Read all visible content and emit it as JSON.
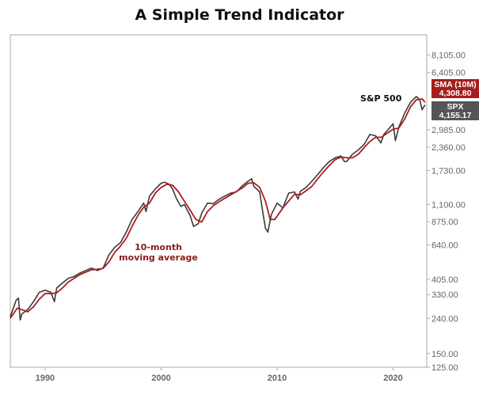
{
  "title": "A Simple Trend Indicator",
  "colors": {
    "price_line": "#3a3a3a",
    "sma_line": "#b01c1c",
    "sma_tag": "#a51d1d",
    "spx_tag": "#555555",
    "frame": "#aaaaaa",
    "annotation": "#8b1a1a"
  },
  "chart_data": {
    "type": "line",
    "title": "A Simple Trend Indicator",
    "xlabel": "",
    "ylabel": "",
    "y_scale": "log",
    "xlim": [
      1987.0,
      2022.9
    ],
    "ylim": [
      125,
      10600
    ],
    "grid": false,
    "x_ticks": [
      1990,
      2000,
      2010,
      2020
    ],
    "x_tick_labels": [
      "1990",
      "2000",
      "2010",
      "2020"
    ],
    "y_ticks": [
      125,
      150,
      240,
      330,
      405,
      640,
      875,
      1100,
      1730,
      2360,
      2985,
      6405,
      8105
    ],
    "y_tick_labels": [
      "125.00",
      "150.00",
      "240.00",
      "330.00",
      "405.00",
      "640.00",
      "875.00",
      "1,100.00",
      "1,730.00",
      "2,360.00",
      "2,985.00",
      "6,405.00",
      "8,105.00"
    ],
    "series": [
      {
        "name": "S&P 500",
        "x": [
          1987.0,
          1987.5,
          1987.7,
          1987.85,
          1988.0,
          1988.5,
          1989.0,
          1989.5,
          1990.0,
          1990.5,
          1990.8,
          1991.0,
          1991.5,
          1992.0,
          1992.5,
          1993.0,
          1993.5,
          1994.0,
          1994.5,
          1995.0,
          1995.5,
          1996.0,
          1996.5,
          1997.0,
          1997.5,
          1998.0,
          1998.5,
          1998.7,
          1999.0,
          1999.5,
          2000.0,
          2000.3,
          2000.7,
          2001.0,
          2001.3,
          2001.7,
          2002.0,
          2002.5,
          2002.8,
          2003.2,
          2003.5,
          2004.0,
          2004.5,
          2005.0,
          2005.5,
          2006.0,
          2006.5,
          2007.0,
          2007.5,
          2007.8,
          2008.0,
          2008.5,
          2008.8,
          2009.0,
          2009.2,
          2009.5,
          2010.0,
          2010.5,
          2011.0,
          2011.5,
          2011.8,
          2012.0,
          2012.5,
          2013.0,
          2013.5,
          2014.0,
          2014.5,
          2015.0,
          2015.5,
          2015.8,
          2016.0,
          2016.5,
          2017.0,
          2017.5,
          2018.0,
          2018.5,
          2018.95,
          2019.2,
          2019.5,
          2020.0,
          2020.2,
          2020.5,
          2021.0,
          2021.5,
          2022.0,
          2022.3,
          2022.5,
          2022.75
        ],
        "values": [
          245,
          305,
          315,
          235,
          255,
          270,
          300,
          340,
          350,
          340,
          300,
          360,
          385,
          410,
          420,
          440,
          455,
          470,
          455,
          470,
          560,
          620,
          660,
          760,
          900,
          1000,
          1120,
          1000,
          1230,
          1350,
          1460,
          1480,
          1440,
          1350,
          1200,
          1070,
          1100,
          950,
          820,
          850,
          980,
          1120,
          1110,
          1180,
          1230,
          1280,
          1300,
          1410,
          1500,
          1550,
          1400,
          1300,
          960,
          800,
          760,
          960,
          1120,
          1050,
          1280,
          1300,
          1180,
          1310,
          1380,
          1500,
          1640,
          1800,
          1950,
          2050,
          2100,
          1950,
          1950,
          2150,
          2280,
          2450,
          2800,
          2750,
          2500,
          2800,
          2950,
          3230,
          2580,
          3100,
          3730,
          4300,
          4650,
          4450,
          3900,
          4155
        ]
      },
      {
        "name": "SMA (10M)",
        "x": [
          1987.0,
          1987.6,
          1988.0,
          1988.5,
          1989.0,
          1989.5,
          1990.0,
          1990.7,
          1991.0,
          1991.5,
          1992.0,
          1992.5,
          1993.0,
          1993.5,
          1994.0,
          1994.5,
          1995.0,
          1995.5,
          1996.0,
          1996.5,
          1997.0,
          1997.5,
          1998.0,
          1998.5,
          1999.0,
          1999.5,
          2000.0,
          2000.5,
          2001.0,
          2001.5,
          2002.0,
          2002.5,
          2003.0,
          2003.5,
          2004.0,
          2004.5,
          2005.0,
          2006.0,
          2007.0,
          2007.5,
          2008.0,
          2008.5,
          2009.0,
          2009.4,
          2009.8,
          2010.5,
          2011.0,
          2011.5,
          2012.0,
          2012.5,
          2013.0,
          2013.5,
          2014.0,
          2014.5,
          2015.0,
          2015.5,
          2016.0,
          2016.5,
          2017.0,
          2017.5,
          2018.0,
          2018.5,
          2019.0,
          2019.5,
          2020.0,
          2020.5,
          2021.0,
          2021.5,
          2022.0,
          2022.5,
          2022.75
        ],
        "values": [
          240,
          275,
          270,
          262,
          280,
          310,
          335,
          335,
          338,
          360,
          390,
          410,
          430,
          445,
          460,
          462,
          468,
          510,
          580,
          630,
          700,
          820,
          950,
          1060,
          1120,
          1280,
          1380,
          1440,
          1420,
          1300,
          1150,
          1020,
          900,
          870,
          1000,
          1080,
          1140,
          1250,
          1370,
          1460,
          1470,
          1380,
          1150,
          900,
          900,
          1050,
          1150,
          1260,
          1250,
          1320,
          1400,
          1550,
          1700,
          1850,
          2000,
          2070,
          2050,
          2050,
          2150,
          2350,
          2550,
          2700,
          2700,
          2850,
          3000,
          3050,
          3450,
          4050,
          4450,
          4500,
          4308.8
        ]
      }
    ],
    "annotations": {
      "sp500_label": "S&P 500",
      "sma_label_line1": "10-month",
      "sma_label_line2": "moving average"
    },
    "tags": {
      "sma_name": "SMA (10M)",
      "sma_value": "4,308.80",
      "spx_name": "SPX",
      "spx_value": "4,155.17"
    }
  }
}
